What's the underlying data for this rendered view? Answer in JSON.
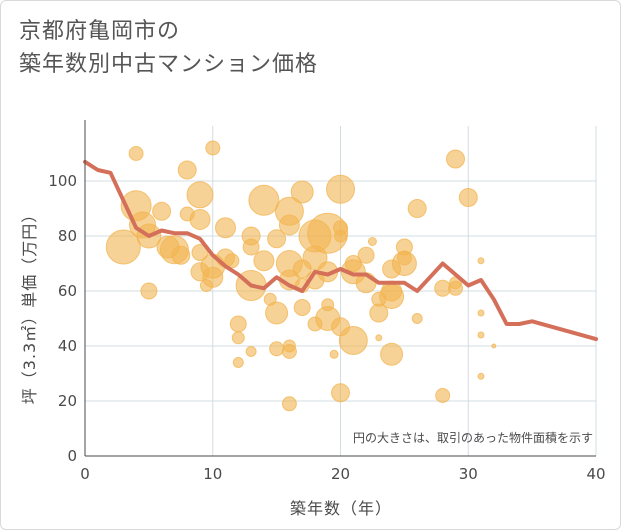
{
  "title": {
    "line1": "京都府亀岡市の",
    "line2": "築年数別中古マンション価格"
  },
  "colors": {
    "bubble": "#f2b450",
    "line": "#d4705a",
    "grid": "#d3dce3",
    "axis": "#4a4a4a"
  },
  "chart_data": {
    "type": "scatter",
    "title": "京都府亀岡市の築年数別中古マンション価格",
    "xlabel": "築年数（年）",
    "ylabel": "坪（3.3㎡）単価（万円）",
    "xlim": [
      0,
      40
    ],
    "ylim": [
      0,
      120
    ],
    "x_ticks": [
      0,
      10,
      20,
      30,
      40
    ],
    "y_ticks": [
      0,
      20,
      40,
      60,
      80,
      100
    ],
    "grid": true,
    "annotation": "円の大きさは、取引のあった物件面積を示す",
    "series": [
      {
        "type": "bubble",
        "points": [
          [
            3,
            76,
            17
          ],
          [
            4,
            91,
            15
          ],
          [
            4.5,
            84,
            13
          ],
          [
            5,
            80,
            12
          ],
          [
            5,
            60,
            8
          ],
          [
            6,
            89,
            9
          ],
          [
            6.5,
            76,
            11
          ],
          [
            7,
            75,
            14
          ],
          [
            7.5,
            73,
            9
          ],
          [
            4,
            110,
            7
          ],
          [
            8,
            104,
            9
          ],
          [
            8,
            88,
            7
          ],
          [
            9,
            95,
            13
          ],
          [
            9,
            86,
            10
          ],
          [
            9,
            74,
            8
          ],
          [
            9,
            67,
            9
          ],
          [
            9.5,
            62,
            6
          ],
          [
            10,
            69,
            12
          ],
          [
            10,
            65,
            10
          ],
          [
            10,
            112,
            7
          ],
          [
            11,
            83,
            10
          ],
          [
            11,
            72,
            9
          ],
          [
            11.5,
            71,
            7
          ],
          [
            12,
            48,
            8
          ],
          [
            12,
            43,
            6
          ],
          [
            12,
            34,
            5
          ],
          [
            13,
            80,
            9
          ],
          [
            13,
            76,
            8
          ],
          [
            13,
            62,
            15
          ],
          [
            13,
            38,
            5
          ],
          [
            14,
            93,
            15
          ],
          [
            14,
            71,
            10
          ],
          [
            14.5,
            57,
            6
          ],
          [
            15,
            79,
            9
          ],
          [
            15,
            52,
            11
          ],
          [
            15,
            39,
            7
          ],
          [
            16,
            89,
            14
          ],
          [
            16,
            84,
            10
          ],
          [
            16,
            70,
            13
          ],
          [
            16,
            64,
            10
          ],
          [
            16,
            40,
            6
          ],
          [
            16,
            38,
            7
          ],
          [
            16,
            19,
            7
          ],
          [
            17,
            96,
            11
          ],
          [
            17,
            68,
            9
          ],
          [
            17,
            62,
            7
          ],
          [
            17,
            54,
            8
          ],
          [
            18,
            80,
            16
          ],
          [
            18,
            72,
            12
          ],
          [
            18,
            64,
            9
          ],
          [
            18,
            48,
            7
          ],
          [
            19,
            81,
            20
          ],
          [
            19,
            67,
            10
          ],
          [
            19,
            55,
            6
          ],
          [
            19,
            50,
            12
          ],
          [
            19.5,
            37,
            4
          ],
          [
            20,
            97,
            14
          ],
          [
            20,
            83,
            7
          ],
          [
            20,
            80,
            6
          ],
          [
            20,
            47,
            9
          ],
          [
            20,
            23,
            9
          ],
          [
            21,
            70,
            8
          ],
          [
            21,
            67,
            12
          ],
          [
            21,
            42,
            14
          ],
          [
            22,
            73,
            8
          ],
          [
            22,
            63,
            10
          ],
          [
            22.5,
            78,
            4
          ],
          [
            23,
            57,
            7
          ],
          [
            23,
            52,
            9
          ],
          [
            23,
            43,
            3
          ],
          [
            24,
            68,
            9
          ],
          [
            24,
            60,
            10
          ],
          [
            24,
            58,
            12
          ],
          [
            24,
            37,
            11
          ],
          [
            25,
            76,
            8
          ],
          [
            25,
            72,
            7
          ],
          [
            25,
            70,
            12
          ],
          [
            26,
            90,
            9
          ],
          [
            26,
            50,
            5
          ],
          [
            28,
            61,
            8
          ],
          [
            28,
            22,
            7
          ],
          [
            29,
            108,
            9
          ],
          [
            29,
            63,
            6
          ],
          [
            29,
            61,
            7
          ],
          [
            30,
            94,
            9
          ],
          [
            31,
            71,
            3
          ],
          [
            31,
            52,
            3
          ],
          [
            31,
            44,
            3
          ],
          [
            31,
            29,
            3
          ],
          [
            32,
            40,
            2
          ]
        ]
      },
      {
        "type": "line",
        "x": [
          0,
          1,
          2,
          3,
          4,
          5,
          6,
          7,
          8,
          9,
          10,
          11,
          12,
          13,
          14,
          15,
          16,
          17,
          18,
          19,
          20,
          21,
          22,
          23,
          24,
          25,
          26,
          27,
          28,
          29,
          30,
          31,
          32,
          33,
          34,
          35,
          40
        ],
        "y": [
          107,
          104,
          103,
          93,
          83,
          80,
          82,
          81,
          81,
          79,
          73,
          69,
          66,
          62,
          61,
          65,
          62,
          60,
          67,
          66,
          68,
          66,
          66,
          63,
          63,
          63,
          60,
          65,
          70,
          66,
          62,
          64,
          57,
          48,
          48,
          49,
          42.5
        ]
      }
    ]
  }
}
